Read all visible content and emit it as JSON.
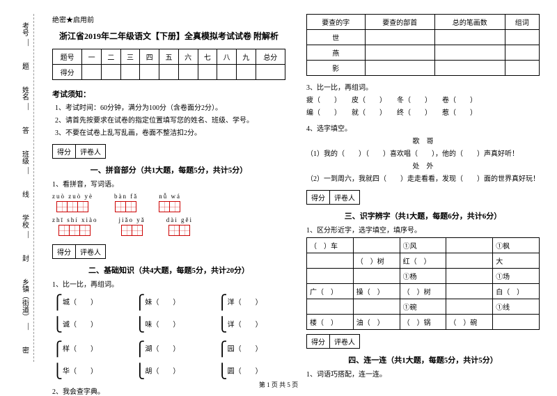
{
  "confidential": "绝密★启用前",
  "title": "浙江省2019年二年级语文【下册】全真模拟考试试卷 附解析",
  "side": {
    "items": [
      "考号",
      "姓名",
      "班级",
      "学校",
      "乡镇（街道）"
    ],
    "marks": [
      "题",
      "答",
      "内",
      "线",
      "封",
      "密"
    ]
  },
  "scoreTable": {
    "row1": [
      "题号",
      "一",
      "二",
      "三",
      "四",
      "五",
      "六",
      "七",
      "八",
      "九",
      "总分"
    ],
    "row2Label": "得分"
  },
  "notice": {
    "title": "考试须知：",
    "items": [
      "1、考试时间：60分钟，满分为100分（含卷面分2分）。",
      "2、请首先按要求在试卷的指定位置填写您的姓名、班级、学号。",
      "3、不要在试卷上乱写乱画，卷面不整洁扣2分。"
    ]
  },
  "sectionBox": {
    "c1": "得分",
    "c2": "评卷人"
  },
  "sec1": {
    "title": "一、拼音部分（共1大题，每题5分，共计5分）",
    "q1": "1、看拼音，写词语。",
    "pinyins": [
      [
        "zuò  zuò  yè",
        "bàn  fǎ",
        "nǚ  wá"
      ],
      [
        "zhī  shí  xiào",
        "jiǎo  yǎ",
        "dài  gěi"
      ]
    ],
    "gridCounts": [
      [
        3,
        2,
        2
      ],
      [
        3,
        2,
        2
      ]
    ]
  },
  "sec2": {
    "title": "二、基础知识（共4大题，每题5分，共计20分）",
    "q1": "1、比一比，再组词。",
    "pairs": [
      [
        [
          "城（",
          "）"
        ],
        [
          "妹（",
          "）"
        ],
        [
          "洋（",
          "）"
        ]
      ],
      [
        [
          "诚（",
          "）"
        ],
        [
          "味（",
          "）"
        ],
        [
          "详（",
          "）"
        ]
      ],
      [
        [
          "样（",
          "）"
        ],
        [
          "湖（",
          "）"
        ],
        [
          "园（",
          "）"
        ]
      ],
      [
        [
          "华（",
          "）"
        ],
        [
          "胡（",
          "）"
        ],
        [
          "圆（",
          "）"
        ]
      ]
    ],
    "q2": "2、我会查字典。"
  },
  "lookupTable": {
    "headers": [
      "要查的字",
      "要查的部首",
      "总的笔画数",
      "组词"
    ],
    "rows": [
      "世",
      "燕",
      "影"
    ]
  },
  "sec3list": {
    "q3": "3、比一比，再组词。",
    "line1": "疲（　　）　　皮（　　）　　冬（　　）　　卷（　　）",
    "line2": "编（　　）　　就（　　）　　终（　　）　　惹（　　）",
    "q4": "4、选字填空。",
    "sub1label": "歌　哥",
    "sub1": "（1）我的（　　）（　　）喜欢唱（　　），他的（　　）声真好听！",
    "sub2label": "处　外",
    "sub2": "（2）一到周六，我就四（　　）走走看看，发现（　　）面的世界真好玩！"
  },
  "sec3": {
    "title": "三、识字辨字（共1大题，每题6分，共计6分）",
    "q1": "1、区分形近字，选字填空，填序号。",
    "table": [
      [
        "（　）车",
        "",
        "①风",
        "",
        "①枫"
      ],
      [
        "",
        "（　）树",
        "红（　）",
        "",
        "大"
      ],
      [
        "",
        "",
        "①杨",
        "",
        "①场"
      ],
      [
        "广（　）",
        "操（　）",
        "（　）树",
        "",
        "白（　）"
      ],
      [
        "",
        "",
        "①碗",
        "",
        "①线"
      ],
      [
        "楼（　）",
        "油（　）",
        "（　）锅",
        "（　）碗",
        ""
      ]
    ]
  },
  "sec4": {
    "title": "四、连一连（共1大题，每题5分，共计5分）",
    "q1": "1、词语巧搭配，连一连。"
  },
  "footer": "第 1 页  共 5 页"
}
